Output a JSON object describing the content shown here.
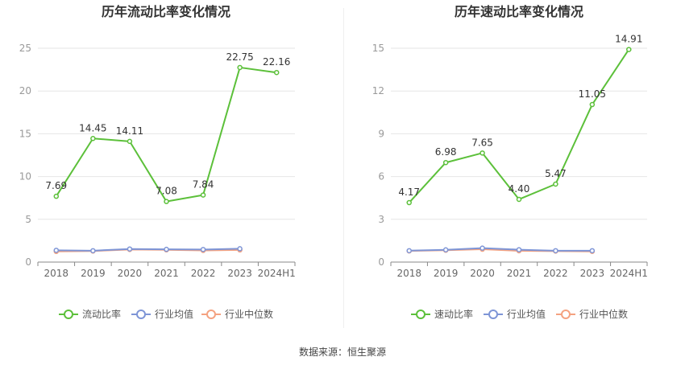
{
  "footer": {
    "source_label": "数据来源：",
    "source_name": "恒生聚源"
  },
  "colors": {
    "main": "#5cc03a",
    "avg": "#7e95d6",
    "median": "#f4a280",
    "axis": "#999999",
    "grid": "#e6e6e6"
  },
  "chart_data": [
    {
      "type": "line",
      "title": "历年流动比率变化情况",
      "categories": [
        "2018",
        "2019",
        "2020",
        "2021",
        "2022",
        "2023",
        "2024H1"
      ],
      "ylim": [
        0,
        25
      ],
      "yticks": [
        0,
        5,
        10,
        15,
        20,
        25
      ],
      "grid": true,
      "legend_position": "bottom",
      "series": [
        {
          "name": "流动比率",
          "values": [
            7.69,
            14.45,
            14.11,
            7.08,
            7.84,
            22.75,
            22.16
          ],
          "labels": [
            "7.69",
            "14.45",
            "14.11",
            "7.08",
            "7.84",
            "22.75",
            "22.16"
          ],
          "color": "#5cc03a"
        },
        {
          "name": "行业均值",
          "values": [
            1.38,
            1.33,
            1.53,
            1.49,
            1.47,
            1.56,
            null
          ],
          "color": "#7e95d6"
        },
        {
          "name": "行业中位数",
          "values": [
            1.24,
            1.29,
            1.47,
            1.43,
            1.36,
            1.42,
            null
          ],
          "color": "#f4a280"
        }
      ]
    },
    {
      "type": "line",
      "title": "历年速动比率变化情况",
      "categories": [
        "2018",
        "2019",
        "2020",
        "2021",
        "2022",
        "2023",
        "2024H1"
      ],
      "ylim": [
        0,
        15
      ],
      "yticks": [
        0,
        3,
        6,
        9,
        12,
        15
      ],
      "grid": true,
      "legend_position": "bottom",
      "series": [
        {
          "name": "速动比率",
          "values": [
            4.17,
            6.98,
            7.65,
            4.4,
            5.47,
            11.05,
            14.91
          ],
          "labels": [
            "4.17",
            "6.98",
            "7.65",
            "4.40",
            "5.47",
            "11.05",
            "14.91"
          ],
          "color": "#5cc03a"
        },
        {
          "name": "行业均值",
          "values": [
            0.8,
            0.86,
            0.98,
            0.87,
            0.8,
            0.8,
            null
          ],
          "color": "#7e95d6"
        },
        {
          "name": "行业中位数",
          "values": [
            0.78,
            0.83,
            0.9,
            0.79,
            0.77,
            0.75,
            null
          ],
          "color": "#f4a280"
        }
      ]
    }
  ]
}
